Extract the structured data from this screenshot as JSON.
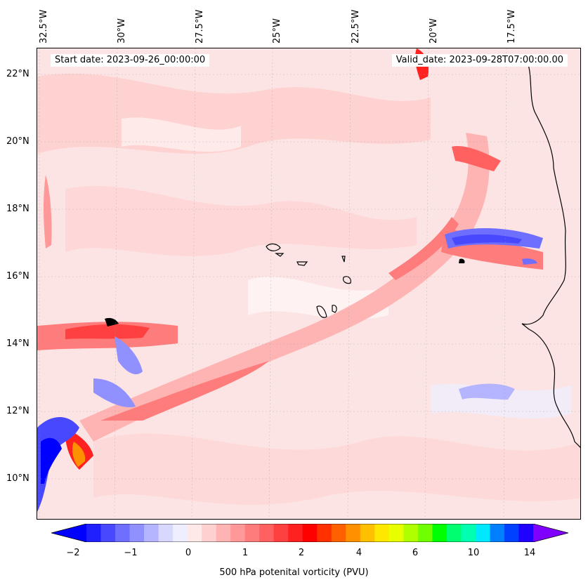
{
  "map": {
    "start_date_text": "Start date: 2023-09-26_00:00:00",
    "valid_date_text": "Valid_date: 2023-09-28T07:00:00.00",
    "variable_label": "500 hPa potenital vorticity (PVU)",
    "lon_ticks": [
      "32.5°W",
      "30°W",
      "27.5°W",
      "25°W",
      "22.5°W",
      "20°W",
      "17.5°W"
    ],
    "lat_ticks": [
      "22°N",
      "20°N",
      "18°N",
      "16°N",
      "14°N",
      "12°N",
      "10°N"
    ],
    "colorbar_ticks": [
      "−2",
      "−1",
      "0",
      "1",
      "2",
      "4",
      "6",
      "10",
      "14"
    ],
    "colorbar_colors": [
      "#0000ff",
      "#2020ff",
      "#4848ff",
      "#6e6eff",
      "#9090ff",
      "#b4b4ff",
      "#d8d8ff",
      "#eeeeff",
      "#ffe8e8",
      "#ffd0d0",
      "#ffb4b4",
      "#ff9898",
      "#ff7c7c",
      "#ff6060",
      "#ff4040",
      "#ff2020",
      "#ff0000",
      "#ff3000",
      "#ff6000",
      "#ff9000",
      "#ffc000",
      "#ffe800",
      "#e8ff00",
      "#b0ff00",
      "#70ff00",
      "#00ff00",
      "#00ff70",
      "#00ffb0",
      "#00e8ff",
      "#0080ff",
      "#0040ff",
      "#2000ff",
      "#8000ff"
    ],
    "colors": {
      "background_shade": "#fde4e4",
      "light_pink": "#ffd0d0",
      "pink": "#ffb4b4",
      "red": "#ff2020",
      "blue": "#4848ff",
      "light_blue": "#d8d8ff",
      "coast": "#000000"
    }
  }
}
